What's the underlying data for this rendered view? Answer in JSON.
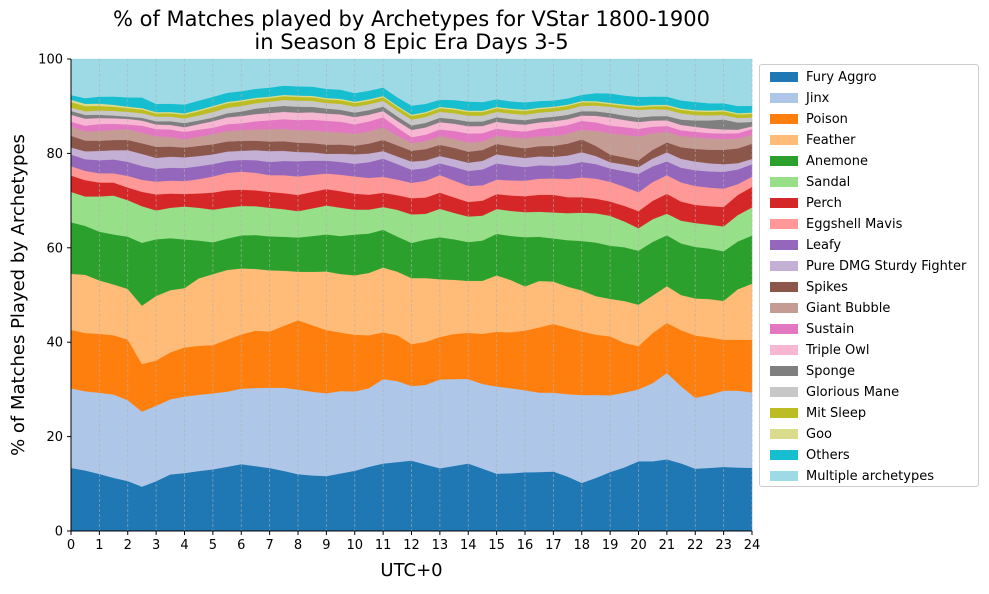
{
  "chart_data": {
    "type": "area",
    "title": "% of Matches played by Archetypes for VStar 1800-1900\nin Season 8 Epic Era Days 3-5",
    "xlabel": "UTC+0",
    "ylabel": "% of Matches Played by Archetypes",
    "xlim": [
      0,
      24
    ],
    "ylim": [
      0,
      100
    ],
    "x_ticks": [
      "0",
      "1",
      "2",
      "3",
      "4",
      "5",
      "6",
      "7",
      "8",
      "9",
      "10",
      "11",
      "12",
      "13",
      "14",
      "15",
      "16",
      "17",
      "18",
      "19",
      "20",
      "21",
      "22",
      "23",
      "24"
    ],
    "y_ticks": [
      "0",
      "20",
      "40",
      "60",
      "80",
      "100"
    ],
    "vertical_grid": true,
    "legend_position": "right",
    "x": [
      0,
      0.5,
      1,
      1.5,
      2,
      2.5,
      3,
      3.5,
      4,
      4.5,
      5,
      5.5,
      6,
      6.5,
      7,
      7.5,
      8,
      8.5,
      9,
      9.5,
      10,
      10.5,
      11,
      11.5,
      12,
      12.5,
      13,
      13.5,
      14,
      14.5,
      15,
      15.5,
      16,
      16.5,
      17,
      17.5,
      18,
      18.5,
      19,
      19.5,
      20,
      20.5,
      21,
      21.5,
      22,
      22.5,
      23,
      23.5,
      24
    ],
    "series": [
      {
        "name": "Fury Aggro",
        "color": "#1f77b4",
        "values": [
          13.5,
          13,
          12.3,
          11.5,
          10.7,
          9.6,
          10.9,
          12.3,
          12.5,
          13,
          13.4,
          14.1,
          14.8,
          14.4,
          13.9,
          13.1,
          12.3,
          12.1,
          12,
          12.6,
          13.3,
          14.2,
          15.2,
          15.5,
          15.6,
          14.7,
          13.9,
          14.3,
          14.8,
          13.8,
          12.7,
          12.7,
          12.9,
          13.2,
          13.5,
          12.3,
          10.9,
          12,
          13.2,
          14.3,
          15.5,
          16,
          16.6,
          15.2,
          13.8,
          14,
          14.2,
          14.2,
          14.2
        ]
      },
      {
        "name": "Jinx",
        "color": "#aec7e8",
        "values": [
          17,
          17,
          17.5,
          18,
          17.3,
          16.2,
          16.5,
          16.3,
          16.5,
          16.5,
          16.5,
          16.5,
          16.7,
          17.3,
          17.7,
          18.1,
          18.3,
          18.2,
          18.1,
          18,
          17.5,
          17.4,
          19,
          18.2,
          16.5,
          17.6,
          19.7,
          19.1,
          18.5,
          18.7,
          19.3,
          18.7,
          18,
          17.8,
          17.9,
          18.6,
          19.9,
          18.7,
          17.2,
          16.8,
          16,
          17.9,
          20,
          17.3,
          15.7,
          16.2,
          16.9,
          17.2,
          16.9
        ]
      },
      {
        "name": "Poison",
        "color": "#ff7f0e",
        "values": [
          12.5,
          12.5,
          12.7,
          12.8,
          13,
          10.3,
          9.9,
          10.2,
          10.6,
          10.6,
          10.5,
          11.4,
          12,
          12.7,
          12.4,
          13.5,
          15,
          14.5,
          13.8,
          12.8,
          12.5,
          11.7,
          10.5,
          10.3,
          9.3,
          9.5,
          9.4,
          9.9,
          10.1,
          11.1,
          12.1,
          12.3,
          13.1,
          14.6,
          15.6,
          15,
          14.4,
          13.6,
          13.2,
          11.2,
          9.6,
          11.5,
          11.6,
          12.6,
          13.8,
          12.7,
          11.3,
          11.4,
          11.8
        ]
      },
      {
        "name": "Feather",
        "color": "#ffbb78",
        "values": [
          12,
          12.5,
          11.5,
          11,
          10.8,
          12.6,
          14.1,
          13.5,
          12.8,
          14.6,
          15.4,
          15.3,
          14.6,
          13.7,
          13.5,
          12,
          10.5,
          11.6,
          12.8,
          12.8,
          13.1,
          13.8,
          14.6,
          14.3,
          14.6,
          14.1,
          12.8,
          11.9,
          11.4,
          11.7,
          12.5,
          11.5,
          9.7,
          10.4,
          9.6,
          9.3,
          9.3,
          8.7,
          8.4,
          9.4,
          9.2,
          8.6,
          8.5,
          7.9,
          8.2,
          8.5,
          8.6,
          11.3,
          12.6
        ]
      },
      {
        "name": "Anemone",
        "color": "#2ca02c",
        "values": [
          11,
          10.5,
          10.5,
          10.8,
          11.2,
          13.6,
          12.4,
          11.3,
          10.5,
          8.2,
          6.9,
          6.9,
          7.3,
          7.5,
          7.5,
          7.4,
          7.4,
          7.8,
          8.1,
          8.3,
          9,
          8.7,
          8.5,
          7.9,
          7.8,
          8.5,
          9.3,
          8.9,
          8.5,
          8.9,
          9.2,
          9.7,
          10.8,
          9.9,
          9.8,
          10.5,
          11.2,
          12.1,
          11.9,
          12.1,
          12,
          12.3,
          11.8,
          11.6,
          11.4,
          11.2,
          11,
          10.7,
          10.8
        ]
      },
      {
        "name": "Sandal",
        "color": "#98df8a",
        "values": [
          6.5,
          6.3,
          7.6,
          8.4,
          7.8,
          7.9,
          6.3,
          6.6,
          7.1,
          7.1,
          7.1,
          6.8,
          6.5,
          6.4,
          6.3,
          6,
          5.7,
          6,
          6.3,
          6.2,
          5.5,
          5.3,
          5.1,
          6,
          6.3,
          5.7,
          6.3,
          5.8,
          5.6,
          5.5,
          5.5,
          5.5,
          5.5,
          5.6,
          5.9,
          6.1,
          6.4,
          6.6,
          6.7,
          5.8,
          5,
          5.2,
          5,
          5.1,
          5.3,
          5.3,
          5.5,
          5.9,
          6.3
        ]
      },
      {
        "name": "Perch",
        "color": "#d62728",
        "values": [
          3.5,
          3.5,
          3,
          2.8,
          2.7,
          3.1,
          3.5,
          3.1,
          2.7,
          3.1,
          3.7,
          3.8,
          3.6,
          3.5,
          3.5,
          3.5,
          3.5,
          3.6,
          3.6,
          3.6,
          3.5,
          3.3,
          3.2,
          3.3,
          3.6,
          3.6,
          3.6,
          3.4,
          3.2,
          3.3,
          3.3,
          3.4,
          3.5,
          3.8,
          4,
          3.6,
          3.5,
          3.3,
          3.2,
          3.5,
          3.8,
          4.2,
          4.6,
          4.3,
          4,
          4.1,
          4.3,
          4.5,
          4.6
        ]
      },
      {
        "name": "Eggshell Mavis",
        "color": "#ff9896",
        "values": [
          2,
          2,
          2,
          2,
          2.5,
          2.6,
          2.8,
          2.8,
          2.8,
          3.1,
          3.5,
          3.8,
          4,
          3.9,
          3.7,
          3.9,
          4,
          3.7,
          3.4,
          3.6,
          3.8,
          3.7,
          3.6,
          3.5,
          3.4,
          3.7,
          3.9,
          3.7,
          3.5,
          3.4,
          3.2,
          3.3,
          3.4,
          3.6,
          3.7,
          4.1,
          4.5,
          4.5,
          4.4,
          4.3,
          4.2,
          4.3,
          4.3,
          4.3,
          4.2,
          4.1,
          4.1,
          2.4,
          2.3
        ]
      },
      {
        "name": "Leafy",
        "color": "#9467bd",
        "values": [
          2.5,
          2.5,
          2.8,
          3,
          3,
          3,
          2.8,
          2.8,
          2.8,
          2.8,
          2.7,
          2.6,
          2.6,
          2.8,
          2.9,
          3.1,
          3.3,
          3.1,
          2.8,
          2.8,
          2.8,
          3.5,
          4.1,
          3.5,
          2.9,
          2.8,
          2.6,
          3,
          3.3,
          3.5,
          3.6,
          3.3,
          3,
          3,
          2.9,
          3.2,
          3.5,
          3.3,
          3,
          3.5,
          4.1,
          3.6,
          3.2,
          3.3,
          3.5,
          3.6,
          3.7,
          3.3,
          2.8
        ]
      },
      {
        "name": "Pure DMG Sturdy Fighter",
        "color": "#c5b0d5",
        "values": [
          1.5,
          1.7,
          2,
          2,
          2.5,
          2.6,
          2.4,
          2.4,
          2.3,
          2.2,
          2.1,
          2.1,
          2,
          2.2,
          2.4,
          2.2,
          2,
          1.8,
          1.5,
          1.8,
          2.1,
          1.9,
          1.7,
          1.7,
          1.8,
          1.7,
          1.6,
          1.7,
          1.8,
          1.9,
          2,
          2,
          2,
          2,
          2,
          2.1,
          2.2,
          1.8,
          1.4,
          1.5,
          1.5,
          1.8,
          2.1,
          2,
          1.9,
          1.8,
          1.7,
          1.4,
          1.2
        ]
      },
      {
        "name": "Spikes",
        "color": "#8c564b",
        "values": [
          2.5,
          2.3,
          2.2,
          2.2,
          2.2,
          2.3,
          2.4,
          2.2,
          2.1,
          2.2,
          2.2,
          2.2,
          2.2,
          2.1,
          2.1,
          2.1,
          2,
          2,
          2,
          2,
          1.9,
          2.2,
          2.5,
          2.5,
          2.4,
          2.5,
          2.5,
          2.5,
          2.4,
          2.4,
          2.3,
          2.2,
          2.1,
          2.3,
          2.5,
          2.7,
          2.9,
          2.3,
          1.7,
          1.6,
          1.5,
          2,
          2.3,
          2.6,
          2.8,
          3,
          3.2,
          3.3,
          3.4
        ]
      },
      {
        "name": "Giant Bubble",
        "color": "#c49c94",
        "values": [
          2,
          2,
          2.1,
          2.2,
          2.3,
          2.3,
          2.3,
          2.1,
          1.8,
          2,
          2.2,
          2.3,
          2.4,
          2.5,
          2.7,
          2.7,
          2.7,
          2.8,
          2.8,
          2.7,
          2.6,
          2.7,
          2.8,
          2.2,
          1.7,
          1.8,
          1.9,
          2,
          2,
          1.9,
          1.8,
          2,
          2.2,
          2.2,
          2.2,
          2.2,
          2.2,
          3.4,
          4.8,
          5.1,
          5.3,
          3.8,
          2.4,
          2.5,
          2.6,
          2.5,
          2.4,
          2.2,
          2
        ]
      },
      {
        "name": "Sustain",
        "color": "#e377c2",
        "values": [
          1,
          1.2,
          1.5,
          1.3,
          1,
          1.5,
          1.6,
          1.6,
          1.6,
          1.5,
          1.4,
          1.5,
          1.5,
          1.8,
          2,
          2.1,
          2.2,
          2.3,
          2.4,
          2.3,
          2.1,
          2.2,
          2.3,
          1.8,
          1.3,
          1.4,
          1.5,
          1.7,
          2,
          1.8,
          1.6,
          1.5,
          1.5,
          1.7,
          2,
          2,
          2,
          1.9,
          1.7,
          1.7,
          1.7,
          1.5,
          1.4,
          1.3,
          1.2,
          1.2,
          1.2,
          1.2,
          1.3
        ]
      },
      {
        "name": "Triple Owl",
        "color": "#f7b6d2",
        "values": [
          1.5,
          1.5,
          1.3,
          1.2,
          1.2,
          1.1,
          1,
          1,
          1,
          1.2,
          1.4,
          1.5,
          1.6,
          1.6,
          1.6,
          1.6,
          1.6,
          1.6,
          1.6,
          1.6,
          1.6,
          1.5,
          1.4,
          1.5,
          1.6,
          1.6,
          1.6,
          1.6,
          1.6,
          1.6,
          1.5,
          1.5,
          1.5,
          1.4,
          1.4,
          1.3,
          1.2,
          1.5,
          1.8,
          1.6,
          1.5,
          1.4,
          1.3,
          1.2,
          1.1,
          1,
          0.9,
          0.8,
          0.6
        ]
      },
      {
        "name": "Sponge",
        "color": "#7f7f7f",
        "values": [
          0.8,
          0.8,
          0.7,
          0.6,
          0.5,
          0.6,
          0.7,
          0.8,
          0.9,
          0.8,
          0.8,
          0.9,
          1,
          1.2,
          1.3,
          1.3,
          1.3,
          1.2,
          1.1,
          1,
          1,
          1,
          1,
          1,
          1,
          1,
          1,
          1,
          1,
          1,
          1,
          1,
          1,
          1,
          1,
          1,
          1,
          1,
          1,
          1,
          1,
          1,
          1,
          1.2,
          1.4,
          1.8,
          2.2,
          1.6,
          1
        ]
      },
      {
        "name": "Glorious Mane",
        "color": "#c7c7c7",
        "values": [
          0.7,
          0.8,
          0.9,
          1,
          1,
          1,
          1,
          1,
          1,
          1.1,
          1.2,
          1.2,
          1.2,
          1.2,
          1.2,
          1.3,
          1.3,
          1.3,
          1.2,
          1.3,
          1.3,
          1.3,
          1.3,
          1.3,
          1.3,
          1.3,
          1.3,
          1.3,
          1.3,
          1.3,
          1.2,
          1.2,
          1.2,
          1.2,
          1.2,
          1.2,
          1.2,
          1.3,
          1.4,
          1.6,
          1.7,
          1.6,
          1.5,
          1.4,
          1.2,
          1.1,
          1,
          1,
          1
        ]
      },
      {
        "name": "Mit Sleep",
        "color": "#bcbd22",
        "values": [
          1.2,
          1.1,
          1,
          0.9,
          0.8,
          0.8,
          0.7,
          0.7,
          0.8,
          0.9,
          1,
          1,
          1,
          0.9,
          0.8,
          0.8,
          0.8,
          0.8,
          0.8,
          0.8,
          0.8,
          0.8,
          0.8,
          0.8,
          0.8,
          0.8,
          0.8,
          0.8,
          0.8,
          0.8,
          0.8,
          0.8,
          0.8,
          0.8,
          0.8,
          0.8,
          0.8,
          0.7,
          0.6,
          0.6,
          0.6,
          0.7,
          0.8,
          0.8,
          0.8,
          0.8,
          0.8,
          0.8,
          0.8
        ]
      },
      {
        "name": "Goo",
        "color": "#dbdb8d",
        "values": [
          0.5,
          0.5,
          0.5,
          0.4,
          0.3,
          0.3,
          0.3,
          0.3,
          0.3,
          0.3,
          0.3,
          0.3,
          0.3,
          0.3,
          0.3,
          0.3,
          0.3,
          0.3,
          0.3,
          0.3,
          0.3,
          0.3,
          0.3,
          0.3,
          0.3,
          0.3,
          0.3,
          0.3,
          0.3,
          0.3,
          0.3,
          0.3,
          0.3,
          0.3,
          0.3,
          0.3,
          0.3,
          0.3,
          0.3,
          0.3,
          0.3,
          0.3,
          0.3,
          0.3,
          0.3,
          0.3,
          0.3,
          0.3,
          0.3
        ]
      },
      {
        "name": "Others",
        "color": "#17becf",
        "values": [
          1,
          1.2,
          1.5,
          1.8,
          2,
          2.3,
          1.8,
          1.8,
          1.9,
          2,
          2,
          2,
          2,
          2,
          2,
          2,
          2,
          2,
          2,
          2,
          1.9,
          1.9,
          1.9,
          1.9,
          2,
          1.8,
          1.6,
          1.8,
          2,
          1.9,
          1.7,
          1.6,
          1.6,
          1.5,
          1.4,
          1.4,
          1.4,
          1.8,
          2.1,
          2,
          2,
          1.9,
          1.9,
          1.8,
          1.8,
          1.6,
          1.5,
          1.6,
          1.5
        ]
      },
      {
        "name": "Multiple archetypes",
        "color": "#9edae5",
        "values": [
          7.7,
          8.4,
          8.1,
          8.1,
          8.2,
          8.3,
          9.8,
          9.7,
          9.8,
          9,
          8.2,
          7.4,
          7.1,
          6.6,
          6.3,
          5.8,
          5.9,
          6,
          6.5,
          6.7,
          7.5,
          7,
          6.4,
          8.6,
          10.3,
          9.9,
          9,
          9,
          9.3,
          9.5,
          8.9,
          9.3,
          9.5,
          9.4,
          9.4,
          8.9,
          8.1,
          7.7,
          7.7,
          8.2,
          8.4,
          8.6,
          8.7,
          9.3,
          9.5,
          9.8,
          9.8,
          10.5,
          10.5
        ]
      }
    ]
  }
}
